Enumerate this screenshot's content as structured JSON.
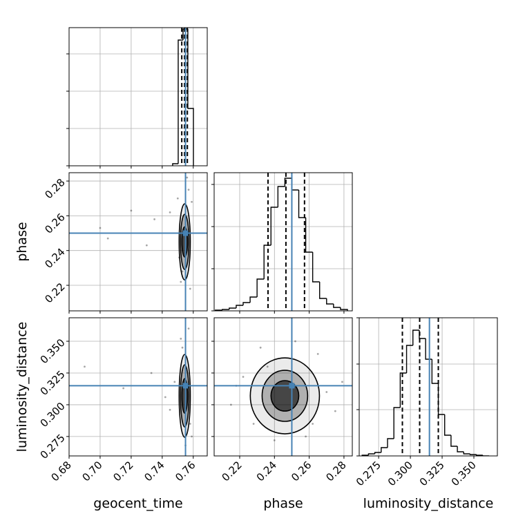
{
  "chart_data": {
    "type": "corner",
    "truth_color": "#4682b4",
    "hist_color": "#000000",
    "parameters": [
      {
        "name": "geocent_time",
        "lim": [
          0.68,
          0.769
        ],
        "ticks": [
          0.68,
          {
            "value": 0.7,
            "label": "0.70"
          },
          0.72,
          0.74,
          0.76
        ],
        "truth": 0.755,
        "quantiles": [
          0.7526,
          0.7544,
          0.7562
        ],
        "hist": {
          "bins": [
            0.7467,
            0.7503,
            0.7534,
            0.7565,
            0.7601
          ],
          "counts": [
            3,
            182,
            198,
            83
          ],
          "ylim": [
            0,
            200
          ],
          "yticks": [
            0,
            54,
            108,
            162
          ]
        }
      },
      {
        "name": "phase",
        "lim": [
          0.2053,
          0.2848
        ],
        "ticks": [
          0.22,
          0.24,
          0.26,
          0.28
        ],
        "truth": 0.25,
        "quantiles": [
          0.2363,
          0.2466,
          0.2573
        ],
        "hist": {
          "bins": [
            0.206,
            0.21,
            0.214,
            0.218,
            0.222,
            0.226,
            0.23,
            0.234,
            0.238,
            0.242,
            0.246,
            0.25,
            0.254,
            0.258,
            0.262,
            0.266,
            0.27,
            0.274,
            0.278,
            0.282
          ],
          "counts": [
            1,
            2,
            4,
            8,
            12,
            20,
            46,
            95,
            150,
            180,
            192,
            175,
            135,
            85,
            42,
            18,
            10,
            5,
            2
          ],
          "ylim": [
            0,
            200
          ],
          "yticks": [
            0,
            61,
            122,
            183
          ]
        }
      },
      {
        "name": "luminosity_distance",
        "lim": [
          0.2597,
          0.3685
        ],
        "ticks": [
          0.275,
          {
            "value": 0.3,
            "label": "0.300"
          },
          0.325,
          {
            "value": 0.35,
            "label": "0.350"
          }
        ],
        "truth": 0.315,
        "quantiles": [
          0.2937,
          0.3073,
          0.322
        ],
        "hist": {
          "bins": [
            0.262,
            0.267,
            0.272,
            0.277,
            0.282,
            0.287,
            0.292,
            0.297,
            0.302,
            0.307,
            0.312,
            0.317,
            0.322,
            0.327,
            0.332,
            0.337,
            0.342,
            0.347,
            0.352,
            0.357,
            0.362
          ],
          "counts": [
            1,
            3,
            5,
            12,
            25,
            70,
            120,
            160,
            182,
            170,
            140,
            105,
            60,
            30,
            14,
            6,
            3,
            2,
            1,
            0
          ],
          "ylim": [
            0,
            200
          ],
          "yticks": [
            0,
            67,
            133,
            200
          ]
        }
      }
    ],
    "pairs": [
      {
        "x": 0,
        "y": 1,
        "contours": [
          {
            "cx": 0.7545,
            "cy": 0.245,
            "rx": 0.0036,
            "ry": 0.0219
          },
          {
            "cx": 0.7545,
            "cy": 0.245,
            "rx": 0.0027,
            "ry": 0.0159
          },
          {
            "cx": 0.7545,
            "cy": 0.245,
            "rx": 0.0018,
            "ry": 0.0087
          }
        ],
        "points": {
          "x": [
            0.705,
            0.72,
            0.735,
            0.7,
            0.745,
            0.75,
            0.752,
            0.757,
            0.758,
            0.756,
            0.753,
            0.759,
            0.751,
            0.73
          ],
          "y": [
            0.247,
            0.263,
            0.258,
            0.253,
            0.262,
            0.27,
            0.222,
            0.275,
            0.218,
            0.282,
            0.228,
            0.268,
            0.236,
            0.243
          ]
        }
      },
      {
        "x": 0,
        "y": 2,
        "contours": [
          {
            "cx": 0.7545,
            "cy": 0.307,
            "rx": 0.0036,
            "ry": 0.0326
          },
          {
            "cx": 0.7545,
            "cy": 0.307,
            "rx": 0.0027,
            "ry": 0.0245
          },
          {
            "cx": 0.7545,
            "cy": 0.307,
            "rx": 0.0018,
            "ry": 0.0136
          }
        ],
        "points": {
          "x": [
            0.69,
            0.715,
            0.733,
            0.742,
            0.748,
            0.752,
            0.757,
            0.759,
            0.755,
            0.753,
            0.758,
            0.745
          ],
          "y": [
            0.33,
            0.313,
            0.325,
            0.306,
            0.318,
            0.352,
            0.36,
            0.275,
            0.268,
            0.345,
            0.285,
            0.296
          ]
        }
      },
      {
        "x": 1,
        "y": 2,
        "contours": [
          {
            "cx": 0.246,
            "cy": 0.307,
            "rx": 0.0199,
            "ry": 0.0299
          },
          {
            "cx": 0.246,
            "cy": 0.307,
            "rx": 0.0131,
            "ry": 0.0201
          },
          {
            "cx": 0.246,
            "cy": 0.307,
            "rx": 0.008,
            "ry": 0.012
          }
        ],
        "points": {
          "x": [
            0.215,
            0.222,
            0.228,
            0.27,
            0.275,
            0.265,
            0.232,
            0.258,
            0.24,
            0.252,
            0.218,
            0.279,
            0.236,
            0.262
          ],
          "y": [
            0.3,
            0.322,
            0.285,
            0.31,
            0.295,
            0.34,
            0.345,
            0.275,
            0.272,
            0.35,
            0.315,
            0.318,
            0.33,
            0.285
          ]
        }
      }
    ]
  }
}
